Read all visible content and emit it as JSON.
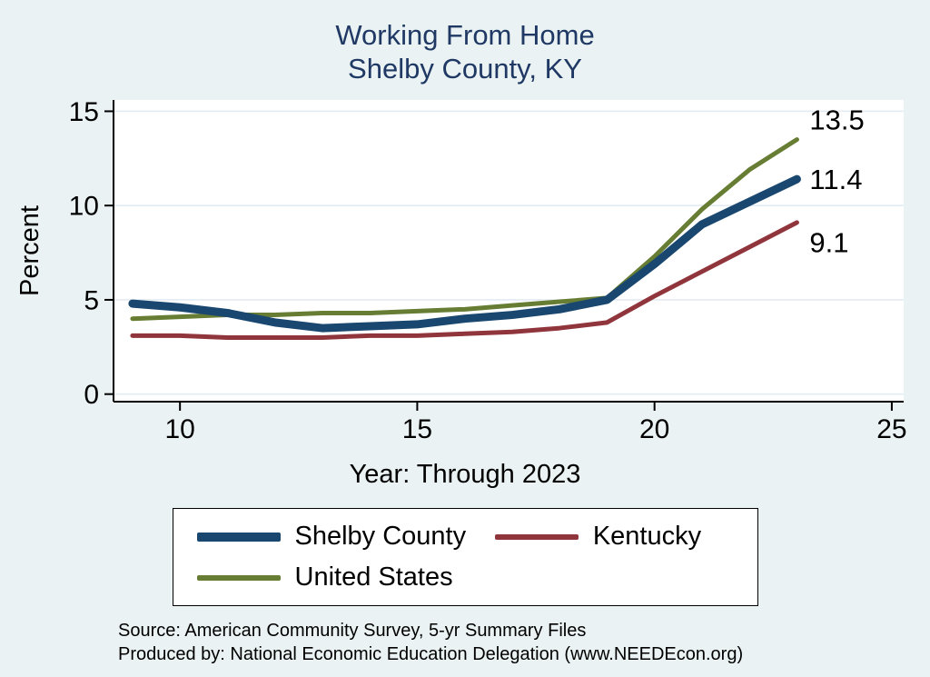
{
  "title": {
    "line1": "Working From Home",
    "line2": "Shelby County, KY"
  },
  "chart_data": {
    "type": "line",
    "x": [
      9,
      10,
      11,
      12,
      13,
      14,
      15,
      16,
      17,
      18,
      19,
      20,
      21,
      22,
      23
    ],
    "series": [
      {
        "name": "Shelby County",
        "color": "#1a476f",
        "width": 9,
        "values": [
          4.8,
          4.6,
          4.3,
          3.8,
          3.5,
          3.6,
          3.7,
          4.0,
          4.2,
          4.5,
          5.0,
          6.9,
          9.0,
          10.2,
          11.4
        ],
        "end_label": "11.4",
        "label_dy": 0
      },
      {
        "name": "Kentucky",
        "color": "#90353b",
        "width": 5,
        "values": [
          3.1,
          3.1,
          3.0,
          3.0,
          3.0,
          3.1,
          3.1,
          3.2,
          3.3,
          3.5,
          3.8,
          5.2,
          6.5,
          7.8,
          9.1
        ],
        "end_label": "9.1",
        "label_dy": 22
      },
      {
        "name": "United States",
        "color": "#667d33",
        "width": 5,
        "values": [
          4.0,
          4.1,
          4.2,
          4.2,
          4.3,
          4.3,
          4.4,
          4.5,
          4.7,
          4.9,
          5.1,
          7.3,
          9.8,
          11.9,
          13.5
        ],
        "end_label": "13.5",
        "label_dy": -22
      }
    ],
    "xlabel": "Year: Through 2023",
    "ylabel": "Percent",
    "xlim": [
      8.6,
      25.25
    ],
    "ylim": [
      -0.4,
      15.6
    ],
    "xticks": [
      10,
      15,
      20,
      25
    ],
    "yticks": [
      0,
      5,
      10,
      15
    ],
    "grid": true,
    "legend_position": "bottom"
  },
  "footer": {
    "source": "Source: American Community Survey, 5-yr Summary Files",
    "produced_by": "Produced by: National Economic Education Delegation (www.NEEDEcon.org)"
  },
  "colors": {
    "background": "#eaf2f3",
    "plot_bg": "#ffffff",
    "title": "#1f3864",
    "grid": "#e3ecf2",
    "axis": "#000000"
  }
}
